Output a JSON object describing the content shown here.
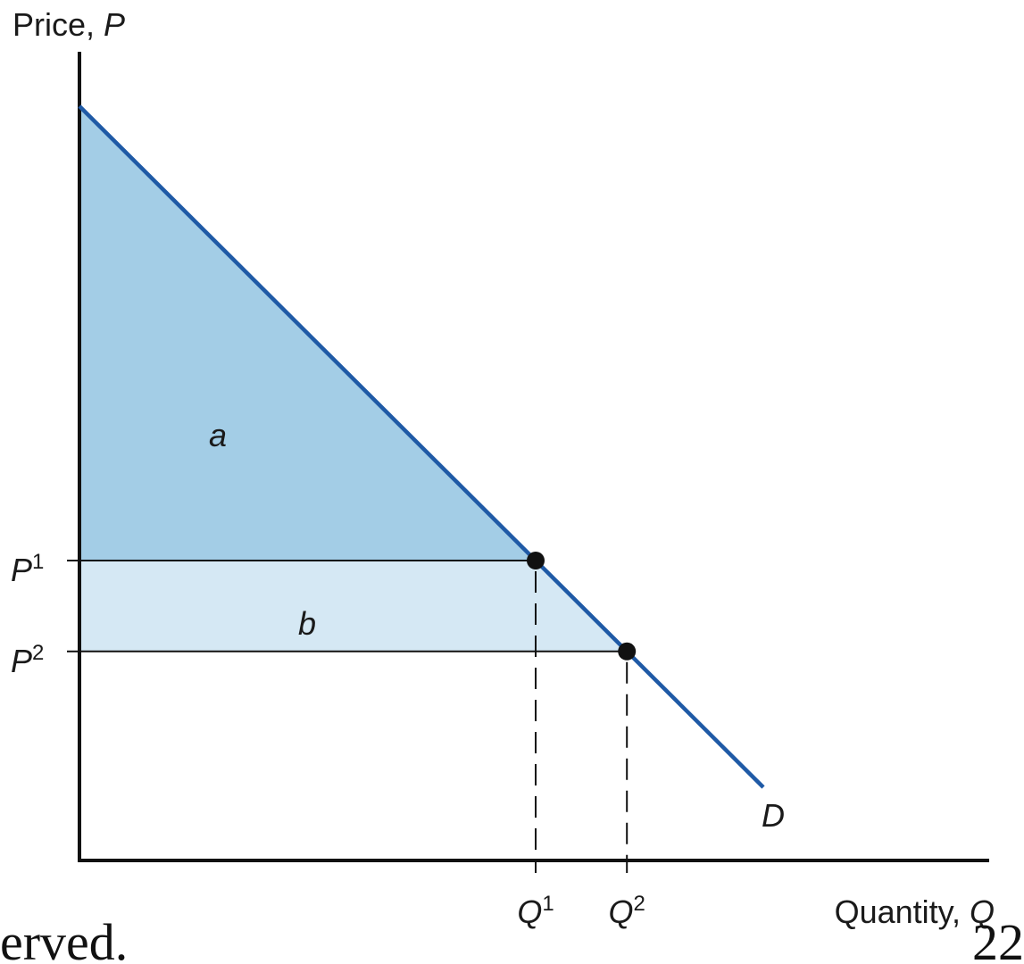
{
  "chart_data": {
    "type": "line",
    "title": "",
    "ylabel": {
      "text": "Price, ",
      "var": "P"
    },
    "xlabel": {
      "text": "Quantity, ",
      "var": "Q"
    },
    "series": [
      {
        "name": "D",
        "points": [
          [
            0,
            1.0
          ],
          [
            1.0,
            0.0
          ]
        ]
      }
    ],
    "points": [
      {
        "p_label": "P",
        "p_sup": "1",
        "q_label": "Q",
        "q_sup": "1",
        "q": 0.6,
        "p": 0.4
      },
      {
        "p_label": "P",
        "p_sup": "2",
        "q_label": "Q",
        "q_sup": "2",
        "q": 0.72,
        "p": 0.28
      }
    ],
    "areas": [
      {
        "label": "a",
        "color": "#a3cde6"
      },
      {
        "label": "b",
        "color": "#d5e8f4"
      }
    ],
    "curve_label": "D",
    "curve_color": "#1f5aa6",
    "grid": false
  },
  "footer": {
    "left_text": "erved.",
    "right_text": "22"
  }
}
